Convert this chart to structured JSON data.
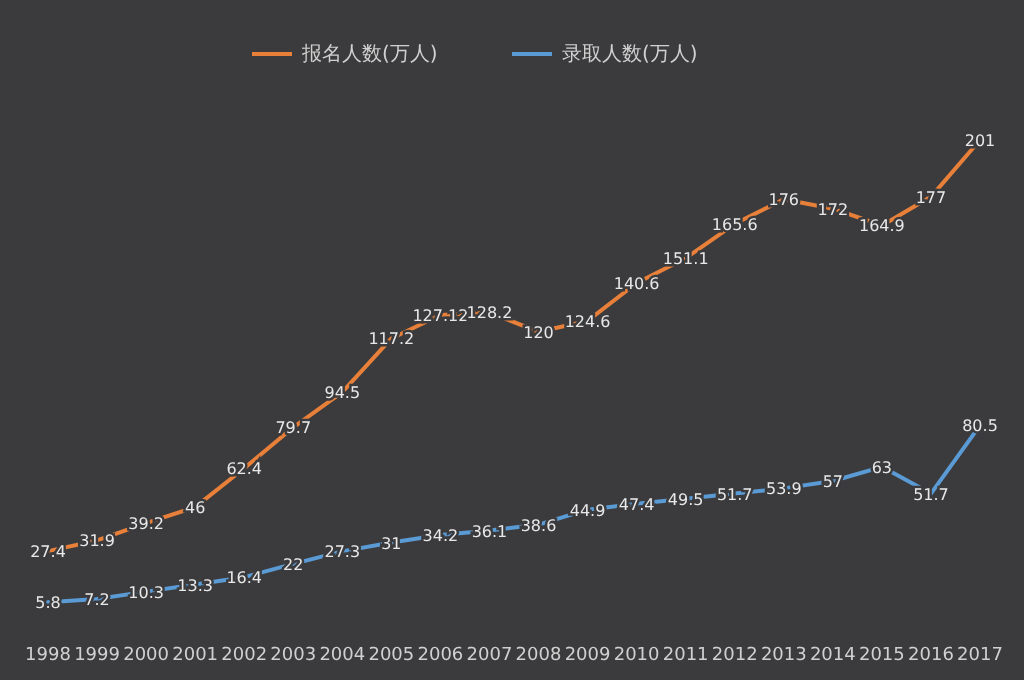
{
  "chart_data": {
    "type": "line",
    "categories": [
      "1998",
      "1999",
      "2000",
      "2001",
      "2002",
      "2003",
      "2004",
      "2005",
      "2006",
      "2007",
      "2008",
      "2009",
      "2010",
      "2011",
      "2012",
      "2013",
      "2014",
      "2015",
      "2016",
      "2017"
    ],
    "series": [
      {
        "name": "报名人数(万人)",
        "color": "#e8803a",
        "values": [
          27.4,
          31.9,
          39.2,
          46,
          62.4,
          79.7,
          94.5,
          117.2,
          127.12,
          128.2,
          120,
          124.6,
          140.6,
          151.1,
          165.6,
          176,
          172,
          164.9,
          177,
          201
        ]
      },
      {
        "name": "录取人数(万人)",
        "color": "#5b9bd5",
        "values": [
          5.8,
          7.2,
          10.3,
          13.3,
          16.4,
          22,
          27.3,
          31,
          34.2,
          36.1,
          38.6,
          44.9,
          47.4,
          49.5,
          51.7,
          53.9,
          57,
          63,
          51.7,
          80.5
        ]
      }
    ],
    "data_labels": true,
    "legend": "top"
  }
}
